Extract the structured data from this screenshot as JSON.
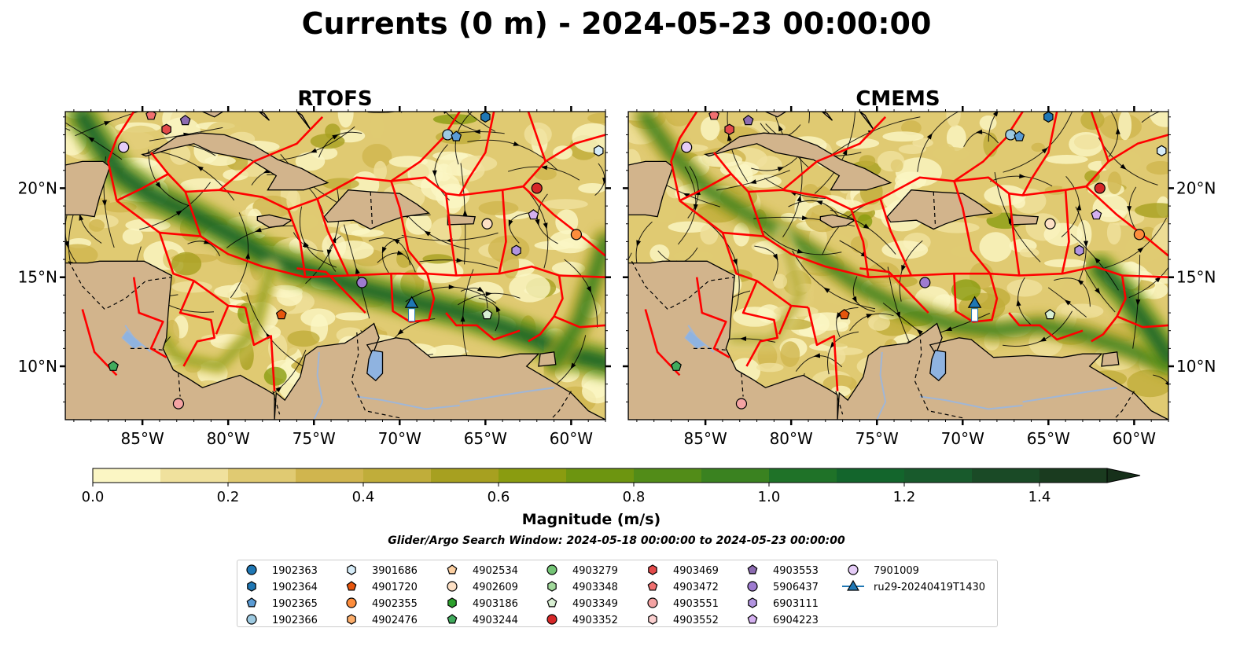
{
  "title": "Currents (0 m) - 2024-05-23 00:00:00",
  "panels": [
    {
      "title": "RTOFS"
    },
    {
      "title": "CMEMS"
    }
  ],
  "map_extent": {
    "lon_min": -89.5,
    "lon_max": -58.0,
    "lat_min": 7.0,
    "lat_max": 24.3
  },
  "lon_ticks": [
    {
      "value": -85,
      "label": "85°W"
    },
    {
      "value": -80,
      "label": "80°W"
    },
    {
      "value": -75,
      "label": "75°W"
    },
    {
      "value": -70,
      "label": "70°W"
    },
    {
      "value": -65,
      "label": "65°W"
    },
    {
      "value": -60,
      "label": "60°W"
    }
  ],
  "lat_ticks": [
    {
      "value": 20,
      "label": "20°N"
    },
    {
      "value": 15,
      "label": "15°N"
    },
    {
      "value": 10,
      "label": "10°N"
    }
  ],
  "colorbar": {
    "label": "Magnitude (m/s)",
    "min": 0.0,
    "max": 1.5,
    "extend": "max",
    "tick_values": [
      0.0,
      0.2,
      0.4,
      0.6,
      0.8,
      1.0,
      1.2,
      1.4
    ],
    "tick_labels": [
      "0.0",
      "0.2",
      "0.4",
      "0.6",
      "0.8",
      "1.0",
      "1.2",
      "1.4"
    ],
    "colors": [
      "#fbf6c4",
      "#f0e19d",
      "#e0ca72",
      "#d0b54e",
      "#c0ad3a",
      "#a7a020",
      "#8a9c10",
      "#6d9510",
      "#528c18",
      "#3a8220",
      "#1f7228",
      "#13652c",
      "#185a2c",
      "#1a4a26",
      "#1a3b1f"
    ],
    "extend_color": "#16301a"
  },
  "colors": {
    "land": "#d2b48c",
    "lake": "#8fb3e0",
    "eez": "#ff0000",
    "coast": "#000000",
    "river": "#a0b6d6"
  },
  "search_window": "Glider/Argo Search Window: 2024-05-18 00:00:00 to 2024-05-23 00:00:00",
  "legend": [
    {
      "label": "1902363",
      "marker": "circle",
      "color": "#1f77b4"
    },
    {
      "label": "1902364",
      "marker": "hexagon",
      "color": "#1f77b4"
    },
    {
      "label": "1902365",
      "marker": "pentagon",
      "color": "#5a9bd4"
    },
    {
      "label": "1902366",
      "marker": "circle",
      "color": "#9ecae1"
    },
    {
      "label": "3901686",
      "marker": "hexagon",
      "color": "#d6ecf8"
    },
    {
      "label": "4901720",
      "marker": "pentagon",
      "color": "#e6550d"
    },
    {
      "label": "4902355",
      "marker": "circle",
      "color": "#fd8d3c"
    },
    {
      "label": "4902476",
      "marker": "hexagon",
      "color": "#fdae6b"
    },
    {
      "label": "4902534",
      "marker": "pentagon",
      "color": "#fdd0a2"
    },
    {
      "label": "4902609",
      "marker": "circle",
      "color": "#fde0c5"
    },
    {
      "label": "4903186",
      "marker": "hexagon",
      "color": "#2ca02c"
    },
    {
      "label": "4903244",
      "marker": "pentagon",
      "color": "#41ab5d"
    },
    {
      "label": "4903279",
      "marker": "circle",
      "color": "#74c476"
    },
    {
      "label": "4903348",
      "marker": "hexagon",
      "color": "#a1d99b"
    },
    {
      "label": "4903349",
      "marker": "pentagon",
      "color": "#d9f0d3"
    },
    {
      "label": "4903352",
      "marker": "circle",
      "color": "#d62728"
    },
    {
      "label": "4903469",
      "marker": "hexagon",
      "color": "#e34a4a"
    },
    {
      "label": "4903472",
      "marker": "pentagon",
      "color": "#f07070"
    },
    {
      "label": "4903551",
      "marker": "circle",
      "color": "#f4a3a3"
    },
    {
      "label": "4903552",
      "marker": "hexagon",
      "color": "#fbd0d0"
    },
    {
      "label": "4903553",
      "marker": "pentagon",
      "color": "#8c6bb1"
    },
    {
      "label": "5906437",
      "marker": "circle",
      "color": "#9e7bd0"
    },
    {
      "label": "6903111",
      "marker": "hexagon",
      "color": "#b294e0"
    },
    {
      "label": "6904223",
      "marker": "pentagon",
      "color": "#d4b0f0"
    },
    {
      "label": "7901009",
      "marker": "circle",
      "color": "#e5ccf7"
    },
    {
      "label": "ru29-20240419T1430",
      "marker": "triangle",
      "color": "#1f77b4"
    }
  ],
  "argo_floats": [
    {
      "lon": -86.1,
      "lat": 22.3,
      "id": "7901009"
    },
    {
      "lon": -83.6,
      "lat": 23.3,
      "id": "4903469"
    },
    {
      "lon": -82.5,
      "lat": 23.8,
      "id": "4903553"
    },
    {
      "lon": -84.5,
      "lat": 24.1,
      "id": "4903472"
    },
    {
      "lon": -67.2,
      "lat": 23.0,
      "id": "1902366"
    },
    {
      "lon": -66.7,
      "lat": 22.9,
      "id": "1902365"
    },
    {
      "lon": -65.0,
      "lat": 24.0,
      "id": "1902364"
    },
    {
      "lon": -58.4,
      "lat": 22.1,
      "id": "3901686"
    },
    {
      "lon": -62.0,
      "lat": 20.0,
      "id": "4903352"
    },
    {
      "lon": -62.2,
      "lat": 18.5,
      "id": "6904223"
    },
    {
      "lon": -64.9,
      "lat": 18.0,
      "id": "4902609"
    },
    {
      "lon": -59.7,
      "lat": 17.4,
      "id": "4902355"
    },
    {
      "lon": -63.2,
      "lat": 16.5,
      "id": "6903111"
    },
    {
      "lon": -72.2,
      "lat": 14.7,
      "id": "5906437"
    },
    {
      "lon": -76.9,
      "lat": 12.9,
      "id": "4901720"
    },
    {
      "lon": -64.9,
      "lat": 12.9,
      "id": "4903349"
    },
    {
      "lon": -86.7,
      "lat": 10.0,
      "id": "4903244"
    },
    {
      "lon": -82.9,
      "lat": 7.9,
      "id": "4903551"
    }
  ],
  "glider": {
    "id": "ru29-20240419T1430",
    "lon": -69.3,
    "lat": 13.5
  }
}
